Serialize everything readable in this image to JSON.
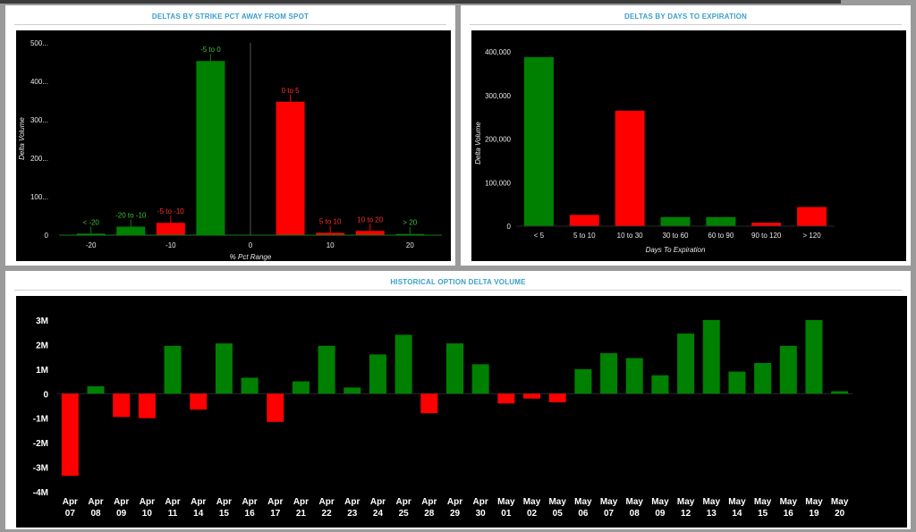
{
  "panels": {
    "strike": {
      "title": "DELTAS BY STRIKE PCT AWAY FROM SPOT",
      "chart_data": {
        "type": "bar",
        "xlabel": "% Pct Range",
        "ylabel": "Delta Volume",
        "ylim": [
          0,
          500
        ],
        "y_ticks": [
          0,
          100,
          200,
          300,
          400,
          500
        ],
        "y_tick_labels": [
          "0",
          "100...",
          "200...",
          "300...",
          "400...",
          "500..."
        ],
        "x_ticks": [
          -20,
          -10,
          0,
          10,
          20
        ],
        "x_tick_labels": [
          "-20",
          "-10",
          "0",
          "10",
          "20"
        ],
        "bars": [
          {
            "label": "< -20",
            "center": -20,
            "value": 4,
            "color": "#008000"
          },
          {
            "label": "-20 to -10",
            "center": -15,
            "value": 22,
            "color": "#008000"
          },
          {
            "label": "-5 to -10",
            "center": -10,
            "value": 32,
            "color": "#ff0000"
          },
          {
            "label": "-5 to 0",
            "center": -5,
            "value": 453,
            "color": "#008000"
          },
          {
            "label": "0 to 5",
            "center": 5,
            "value": 347,
            "color": "#ff0000"
          },
          {
            "label": "5 to 10",
            "center": 10,
            "value": 6,
            "color": "#ff0000"
          },
          {
            "label": "10 to 20",
            "center": 15,
            "value": 11,
            "color": "#ff0000"
          },
          {
            "label": "> 20",
            "center": 20,
            "value": 3,
            "color": "#008000"
          }
        ]
      }
    },
    "days": {
      "title": "DELTAS BY DAYS TO EXPIRATION",
      "chart_data": {
        "type": "bar",
        "xlabel": "Days To Expiration",
        "ylabel": "Delta Volume",
        "ylim": [
          0,
          400000
        ],
        "y_ticks": [
          0,
          100000,
          200000,
          300000,
          400000
        ],
        "y_tick_labels": [
          "0",
          "100,000",
          "200,000",
          "300,000",
          "400,000"
        ],
        "categories": [
          "< 5",
          "5 to 10",
          "10 to 30",
          "30 to 60",
          "60 to 90",
          "90 to 120",
          "> 120"
        ],
        "values": [
          388000,
          26000,
          265000,
          21000,
          21000,
          8000,
          44000
        ],
        "colors": [
          "#008000",
          "#ff0000",
          "#ff0000",
          "#008000",
          "#008000",
          "#ff0000",
          "#ff0000"
        ]
      }
    },
    "history": {
      "title": "HISTORICAL OPTION DELTA VOLUME",
      "chart_data": {
        "type": "bar",
        "ylim": [
          -4000000,
          3000000
        ],
        "y_ticks": [
          -4000000,
          -3000000,
          -2000000,
          -1000000,
          0,
          1000000,
          2000000,
          3000000
        ],
        "y_tick_labels": [
          "-4M",
          "-3M",
          "-2M",
          "-1M",
          "0",
          "1M",
          "2M",
          "3M"
        ],
        "categories": [
          [
            "Apr",
            "07"
          ],
          [
            "Apr",
            "08"
          ],
          [
            "Apr",
            "09"
          ],
          [
            "Apr",
            "10"
          ],
          [
            "Apr",
            "11"
          ],
          [
            "Apr",
            "14"
          ],
          [
            "Apr",
            "15"
          ],
          [
            "Apr",
            "16"
          ],
          [
            "Apr",
            "17"
          ],
          [
            "Apr",
            "21"
          ],
          [
            "Apr",
            "22"
          ],
          [
            "Apr",
            "23"
          ],
          [
            "Apr",
            "24"
          ],
          [
            "Apr",
            "25"
          ],
          [
            "Apr",
            "28"
          ],
          [
            "Apr",
            "29"
          ],
          [
            "Apr",
            "30"
          ],
          [
            "May",
            "01"
          ],
          [
            "May",
            "02"
          ],
          [
            "May",
            "05"
          ],
          [
            "May",
            "06"
          ],
          [
            "May",
            "07"
          ],
          [
            "May",
            "08"
          ],
          [
            "May",
            "09"
          ],
          [
            "May",
            "12"
          ],
          [
            "May",
            "13"
          ],
          [
            "May",
            "14"
          ],
          [
            "May",
            "15"
          ],
          [
            "May",
            "16"
          ],
          [
            "May",
            "19"
          ],
          [
            "May",
            "20"
          ]
        ],
        "values": [
          -3350000,
          300000,
          -950000,
          -1000000,
          1950000,
          -650000,
          2050000,
          650000,
          -1150000,
          500000,
          1950000,
          250000,
          1600000,
          2400000,
          -800000,
          2050000,
          1200000,
          -400000,
          -200000,
          -350000,
          1000000,
          1650000,
          1450000,
          750000,
          2450000,
          3000000,
          900000,
          1250000,
          1950000,
          3000000,
          100000
        ],
        "positive_color": "#008000",
        "negative_color": "#ff0000"
      }
    }
  }
}
